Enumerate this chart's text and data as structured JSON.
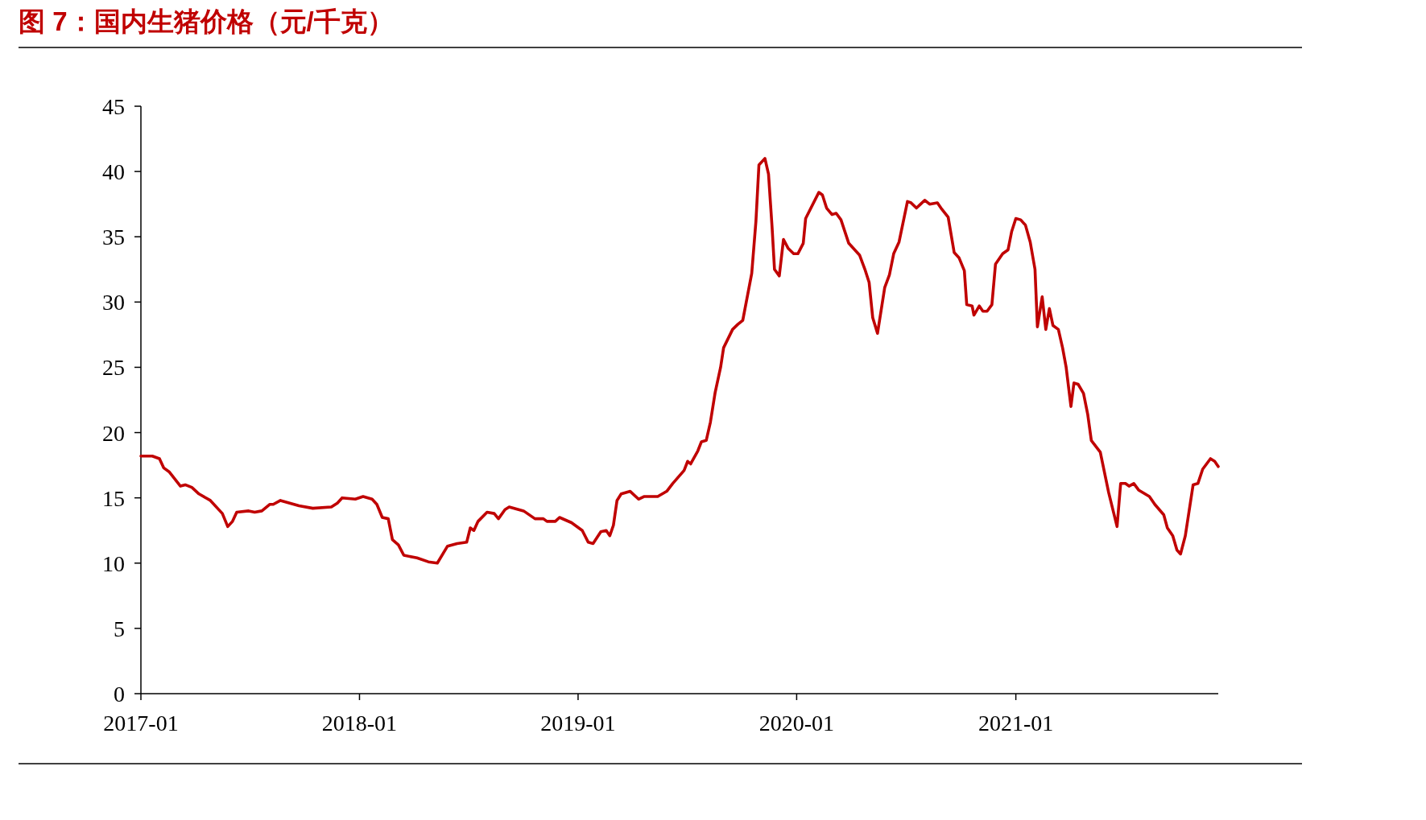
{
  "chart_data": {
    "type": "line",
    "title": "图 7：国内生猪价格（元/千克）",
    "x": [
      "2017-01-01",
      "2017-01-20",
      "2017-02-01",
      "2017-02-08",
      "2017-02-17",
      "2017-03-08",
      "2017-03-16",
      "2017-03-27",
      "2017-04-08",
      "2017-04-27",
      "2017-05-17",
      "2017-05-26",
      "2017-06-03",
      "2017-06-10",
      "2017-06-30",
      "2017-07-10",
      "2017-07-22",
      "2017-08-04",
      "2017-08-10",
      "2017-08-22",
      "2017-09-22",
      "2017-10-15",
      "2017-11-15",
      "2017-11-25",
      "2017-12-03",
      "2017-12-25",
      "2018-01-07",
      "2018-01-22",
      "2018-01-30",
      "2018-02-08",
      "2018-02-18",
      "2018-02-25",
      "2018-03-07",
      "2018-03-16",
      "2018-04-07",
      "2018-04-26",
      "2018-05-11",
      "2018-05-28",
      "2018-06-13",
      "2018-06-29",
      "2018-07-05",
      "2018-07-11",
      "2018-07-18",
      "2018-08-02",
      "2018-08-14",
      "2018-08-21",
      "2018-09-01",
      "2018-09-08",
      "2018-10-02",
      "2018-10-21",
      "2018-11-04",
      "2018-11-10",
      "2018-11-24",
      "2018-12-01",
      "2018-12-21",
      "2019-01-08",
      "2019-01-18",
      "2019-01-26",
      "2019-02-08",
      "2019-02-17",
      "2019-02-23",
      "2019-03-01",
      "2019-03-07",
      "2019-03-14",
      "2019-03-29",
      "2019-04-12",
      "2019-04-21",
      "2019-05-14",
      "2019-05-29",
      "2019-06-08",
      "2019-06-27",
      "2019-07-03",
      "2019-07-08",
      "2019-07-20",
      "2019-07-26",
      "2019-08-03",
      "2019-08-10",
      "2019-08-18",
      "2019-08-27",
      "2019-09-01",
      "2019-09-16",
      "2019-09-25",
      "2019-10-03",
      "2019-10-18",
      "2019-10-25",
      "2019-10-30",
      "2019-11-09",
      "2019-11-15",
      "2019-11-21",
      "2019-11-25",
      "2019-12-03",
      "2019-12-10",
      "2019-12-18",
      "2019-12-27",
      "2020-01-03",
      "2020-01-12",
      "2020-01-16",
      "2020-02-07",
      "2020-02-13",
      "2020-02-20",
      "2020-02-29",
      "2020-03-07",
      "2020-03-15",
      "2020-03-28",
      "2020-04-15",
      "2020-04-24",
      "2020-05-01",
      "2020-05-07",
      "2020-05-15",
      "2020-05-27",
      "2020-06-04",
      "2020-06-11",
      "2020-06-20",
      "2020-07-04",
      "2020-07-10",
      "2020-07-19",
      "2020-07-26",
      "2020-08-02",
      "2020-08-10",
      "2020-08-23",
      "2020-08-29",
      "2020-09-10",
      "2020-09-20",
      "2020-09-28",
      "2020-10-07",
      "2020-10-11",
      "2020-10-20",
      "2020-10-23",
      "2020-11-01",
      "2020-11-07",
      "2020-11-14",
      "2020-11-22",
      "2020-11-28",
      "2020-12-10",
      "2020-12-19",
      "2020-12-25",
      "2021-01-01",
      "2021-01-09",
      "2021-01-17",
      "2021-01-25",
      "2021-02-02",
      "2021-02-06",
      "2021-02-14",
      "2021-02-20",
      "2021-02-26",
      "2021-03-04",
      "2021-03-13",
      "2021-03-20",
      "2021-03-26",
      "2021-04-03",
      "2021-04-08",
      "2021-04-15",
      "2021-04-24",
      "2021-05-01",
      "2021-05-07",
      "2021-05-22",
      "2021-06-05",
      "2021-06-19",
      "2021-06-25",
      "2021-07-03",
      "2021-07-09",
      "2021-07-17",
      "2021-07-25",
      "2021-08-12",
      "2021-08-21",
      "2021-09-05",
      "2021-09-11",
      "2021-09-20",
      "2021-09-27",
      "2021-10-03",
      "2021-10-11",
      "2021-10-24",
      "2021-11-01",
      "2021-11-09",
      "2021-11-22",
      "2021-11-29",
      "2021-12-05"
    ],
    "series": [
      {
        "color": "#c00000",
        "values": [
          18.2,
          18.2,
          18.0,
          17.3,
          17.0,
          15.9,
          16.0,
          15.8,
          15.3,
          14.8,
          13.8,
          12.8,
          13.2,
          13.9,
          14.0,
          13.9,
          14.0,
          14.5,
          14.5,
          14.8,
          14.4,
          14.2,
          14.3,
          14.6,
          15.0,
          14.9,
          15.1,
          14.9,
          14.5,
          13.5,
          13.4,
          11.8,
          11.4,
          10.6,
          10.4,
          10.1,
          10.0,
          11.3,
          11.5,
          11.6,
          12.7,
          12.5,
          13.2,
          13.9,
          13.8,
          13.4,
          14.1,
          14.3,
          14.0,
          13.4,
          13.4,
          13.2,
          13.2,
          13.5,
          13.1,
          12.5,
          11.6,
          11.5,
          12.4,
          12.5,
          12.1,
          12.9,
          14.8,
          15.3,
          15.5,
          14.9,
          15.1,
          15.1,
          15.5,
          16.1,
          17.1,
          17.8,
          17.6,
          18.6,
          19.3,
          19.4,
          20.8,
          23.1,
          25.0,
          26.5,
          27.9,
          28.3,
          28.6,
          32.2,
          36.2,
          40.5,
          41.0,
          39.8,
          35.7,
          32.5,
          32.0,
          34.8,
          34.1,
          33.7,
          33.7,
          34.5,
          36.4,
          38.4,
          38.2,
          37.2,
          36.7,
          36.8,
          36.3,
          34.5,
          33.6,
          32.5,
          31.5,
          28.8,
          27.6,
          31.1,
          32.1,
          33.7,
          34.6,
          37.7,
          37.6,
          37.2,
          37.5,
          37.8,
          37.5,
          37.6,
          37.2,
          36.5,
          33.8,
          33.4,
          32.4,
          29.8,
          29.7,
          29.0,
          29.7,
          29.3,
          29.3,
          29.8,
          32.9,
          33.7,
          34.0,
          35.4,
          36.4,
          36.3,
          35.9,
          34.6,
          32.5,
          28.1,
          30.4,
          27.9,
          29.5,
          28.2,
          27.9,
          26.5,
          25.0,
          22.0,
          23.8,
          23.7,
          23.0,
          21.4,
          19.4,
          18.5,
          15.4,
          12.8,
          16.1,
          16.1,
          15.9,
          16.1,
          15.6,
          15.1,
          14.5,
          13.7,
          12.7,
          12.1,
          11.0,
          10.7,
          12.1,
          16.0,
          16.1,
          17.2,
          18.0,
          17.8,
          17.4
        ]
      }
    ],
    "xlim": [
      "2017-01-01",
      "2021-12-05"
    ],
    "xticks": [
      "2017-01",
      "2018-01",
      "2019-01",
      "2020-01",
      "2021-01"
    ],
    "ylim": [
      0,
      45
    ],
    "yticks": [
      0,
      5,
      10,
      15,
      20,
      25,
      30,
      35,
      40,
      45
    ],
    "grid": false,
    "marker": "none",
    "line_style": "solid"
  }
}
